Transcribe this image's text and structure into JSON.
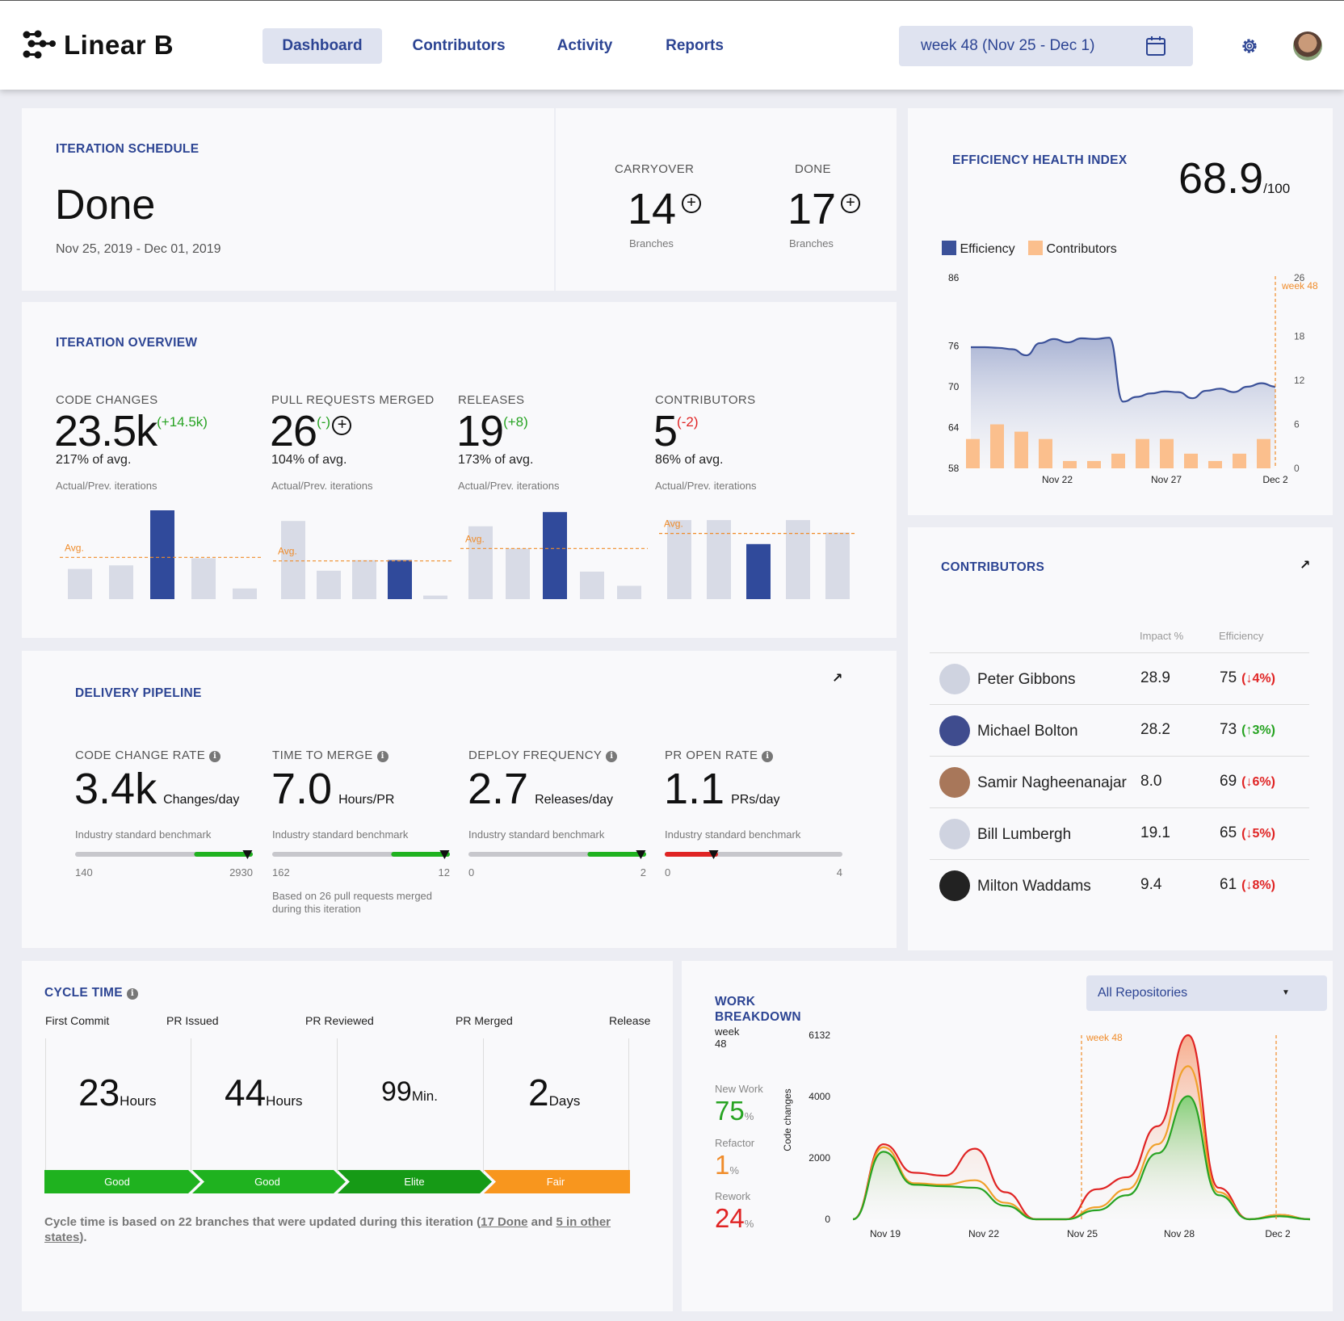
{
  "app": {
    "brand": "Linear B"
  },
  "nav": {
    "items": [
      "Dashboard",
      "Contributors",
      "Activity",
      "Reports"
    ],
    "active": "Dashboard"
  },
  "week_picker": {
    "value": "week 48 (Nov 25 - Dec 1)"
  },
  "iteration_schedule": {
    "title": "ITERATION SCHEDULE",
    "status": "Done",
    "dates": "Nov 25, 2019 - Dec 01, 2019",
    "carryover": {
      "label": "CARRYOVER",
      "value": "14",
      "unit": "Branches"
    },
    "done": {
      "label": "DONE",
      "value": "17",
      "unit": "Branches"
    }
  },
  "efficiency_health": {
    "title": "EFFICIENCY HEALTH INDEX",
    "score": "68.9",
    "out_of": "/100",
    "legend": [
      "Efficiency",
      "Contributors"
    ]
  },
  "iteration_overview": {
    "title": "ITERATION OVERVIEW",
    "note": "Actual/Prev. iterations",
    "avg_label": "Avg.",
    "metrics": [
      {
        "label": "CODE CHANGES",
        "value": "23.5k",
        "delta": "(+14.5k)",
        "pct": "217% of avg."
      },
      {
        "label": "PULL REQUESTS MERGED",
        "value": "26",
        "delta": "(-)",
        "pct": "104% of avg."
      },
      {
        "label": "RELEASES",
        "value": "19",
        "delta": "(+8)",
        "pct": "173% of avg."
      },
      {
        "label": "CONTRIBUTORS",
        "value": "5",
        "delta": "(-2)",
        "pct": "86% of avg."
      }
    ]
  },
  "delivery_pipeline": {
    "title": "DELIVERY PIPELINE",
    "benchmark": "Industry standard benchmark",
    "metrics": [
      {
        "label": "CODE CHANGE RATE",
        "value": "3.4k",
        "unit": "Changes/day",
        "min": "140",
        "max": "2930",
        "marker": 0.97,
        "good_from": 0.67,
        "good_color": "#1fb21f"
      },
      {
        "label": "TIME TO MERGE",
        "value": "7.0",
        "unit": "Hours/PR",
        "min": "162",
        "max": "12",
        "marker": 0.97,
        "good_from": 0.67,
        "good_color": "#1fb21f",
        "note": "Based on 26 pull requests merged during this iteration"
      },
      {
        "label": "DEPLOY FREQUENCY",
        "value": "2.7",
        "unit": "Releases/day",
        "min": "0",
        "max": "2",
        "marker": 0.97,
        "good_from": 0.67,
        "good_color": "#1fb21f"
      },
      {
        "label": "PR OPEN RATE",
        "value": "1.1",
        "unit": "PRs/day",
        "min": "0",
        "max": "4",
        "marker": 0.275,
        "good_from": 0.0,
        "good_to": 0.3,
        "good_color": "#e02424"
      }
    ]
  },
  "contributors": {
    "title": "CONTRIBUTORS",
    "headers": [
      "Impact %",
      "Efficiency"
    ],
    "rows": [
      {
        "name": "Peter Gibbons",
        "impact": "28.9",
        "eff": "75",
        "delta": "(↓4%)",
        "dir": "down"
      },
      {
        "name": "Michael Bolton",
        "impact": "28.2",
        "eff": "73",
        "delta": "(↑3%)",
        "dir": "up"
      },
      {
        "name": "Samir Nagheenanajar",
        "impact": "8.0",
        "eff": "69",
        "delta": "(↓6%)",
        "dir": "down"
      },
      {
        "name": "Bill Lumbergh",
        "impact": "19.1",
        "eff": "65",
        "delta": "(↓5%)",
        "dir": "down"
      },
      {
        "name": "Milton Waddams",
        "impact": "9.4",
        "eff": "61",
        "delta": "(↓8%)",
        "dir": "down"
      }
    ]
  },
  "cycle_time": {
    "title": "CYCLE TIME",
    "stages": [
      "First Commit",
      "PR Issued",
      "PR Reviewed",
      "PR Merged",
      "Release"
    ],
    "values": [
      {
        "value": "23",
        "unit": "Hours",
        "rating": "Good"
      },
      {
        "value": "44",
        "unit": "Hours",
        "rating": "Good"
      },
      {
        "value": "99",
        "unit": "Min.",
        "rating": "Elite"
      },
      {
        "value": "2",
        "unit": "Days",
        "rating": "Fair"
      }
    ],
    "footnote_a": "Cycle time is based on 22 branches that were updated during this iteration (",
    "footnote_link1": "17 Done",
    "footnote_b": " and ",
    "footnote_link2": "5 in other states",
    "footnote_c": ")."
  },
  "work_breakdown": {
    "title": "WORK BREAKDOWN",
    "week_label": "week",
    "week_num": "48",
    "dropdown": "All Repositories",
    "y_axis_title": "Code changes",
    "marker_label": "week 48",
    "items": [
      {
        "label": "New Work",
        "pct": "75",
        "color": "#27a322"
      },
      {
        "label": "Refactor",
        "pct": "1",
        "color": "#f08c2a"
      },
      {
        "label": "Rework",
        "pct": "24",
        "color": "#e02424"
      }
    ]
  },
  "chart_data": [
    {
      "type": "bar",
      "name": "code-changes",
      "values": [
        34,
        38,
        100,
        46,
        12
      ],
      "highlight": 2,
      "avg": 47
    },
    {
      "type": "bar",
      "name": "pull-requests-merged",
      "values": [
        88,
        32,
        44,
        44,
        4
      ],
      "highlight": 3,
      "avg": 43
    },
    {
      "type": "bar",
      "name": "releases",
      "values": [
        82,
        57,
        98,
        31,
        15
      ],
      "highlight": 2,
      "avg": 57
    },
    {
      "type": "bar",
      "name": "contributors",
      "values": [
        89,
        89,
        62,
        89,
        75
      ],
      "highlight": 2,
      "avg": 74
    },
    {
      "type": "area",
      "name": "efficiency-health",
      "x_ticks": [
        "Nov 22",
        "Nov 27",
        "Dec 2"
      ],
      "ylim_left": [
        58,
        86
      ],
      "yticks_left": [
        58,
        64,
        70,
        76,
        86
      ],
      "ylim_right": [
        0,
        26
      ],
      "yticks_right": [
        0,
        6,
        12,
        18,
        26
      ],
      "marker_label": "week 48",
      "series": [
        {
          "name": "Efficiency",
          "values": [
            75.8,
            75.8,
            75.7,
            75.5,
            74.6,
            76.4,
            77.0,
            76.5,
            77.1,
            77.0,
            77.2,
            67.8,
            68.5,
            69.0,
            69.3,
            69.2,
            68.3,
            69.4,
            69.7,
            69.2,
            70.0,
            70.5,
            70.0
          ]
        },
        {
          "name": "Contributors",
          "values": [
            4.0,
            6.0,
            5.0,
            4.0,
            1.0,
            1.0,
            2.0,
            4.0,
            4.0,
            2.0,
            1.0,
            2.0,
            4.0
          ]
        }
      ]
    },
    {
      "type": "line",
      "name": "work-breakdown",
      "x_ticks": [
        "Nov 19",
        "Nov 22",
        "Nov 25",
        "Nov 28",
        "Dec 2"
      ],
      "ylim": [
        0,
        6132
      ],
      "yticks": [
        0,
        2000,
        4000,
        6132
      ],
      "series": [
        {
          "name": "Rework",
          "values": [
            0,
            2500,
            1550,
            1450,
            2350,
            900,
            0,
            0,
            1000,
            1400,
            3100,
            6132,
            1050,
            0,
            150,
            0
          ]
        },
        {
          "name": "Refactor",
          "values": [
            0,
            2400,
            1200,
            1150,
            1300,
            550,
            0,
            0,
            400,
            1000,
            2500,
            5100,
            900,
            0,
            150,
            0
          ]
        },
        {
          "name": "New Work",
          "values": [
            0,
            2250,
            1150,
            1100,
            1050,
            450,
            0,
            0,
            300,
            800,
            2200,
            4100,
            800,
            0,
            100,
            0
          ]
        }
      ]
    }
  ]
}
